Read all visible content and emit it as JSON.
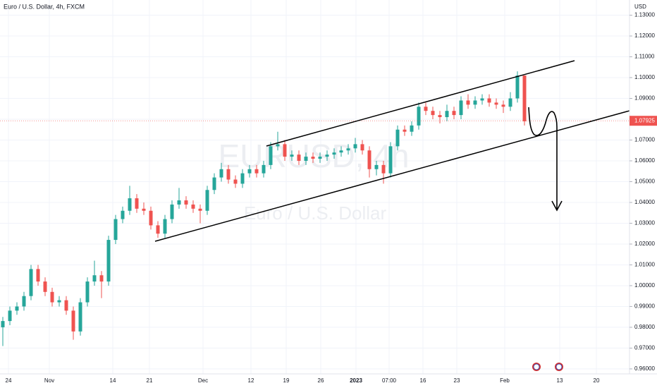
{
  "chart_data": {
    "type": "candlestick",
    "title": "Euro / U.S. Dollar, 4h, FXCM",
    "watermark": "EURUSD, 4h",
    "watermark_subtitle": "Euro / U.S. Dollar",
    "currency": "USD",
    "last_price": 1.07925,
    "up_color": "#26a69a",
    "down_color": "#ef5350",
    "grid": true,
    "ylim": [
      0.9576,
      1.1373
    ],
    "yticks": [
      {
        "value": 0.96,
        "label": "0.96000"
      },
      {
        "value": 0.97,
        "label": "0.97000"
      },
      {
        "value": 0.98,
        "label": "0.98000"
      },
      {
        "value": 0.99,
        "label": "0.99000"
      },
      {
        "value": 1.0,
        "label": "1.00000"
      },
      {
        "value": 1.01,
        "label": "1.01000"
      },
      {
        "value": 1.02,
        "label": "1.02000"
      },
      {
        "value": 1.03,
        "label": "1.03000"
      },
      {
        "value": 1.04,
        "label": "1.04000"
      },
      {
        "value": 1.05,
        "label": "1.05000"
      },
      {
        "value": 1.06,
        "label": "1.06000"
      },
      {
        "value": 1.07,
        "label": "1.07000"
      },
      {
        "value": 1.08,
        "label": "1.08000"
      },
      {
        "value": 1.09,
        "label": "1.09000"
      },
      {
        "value": 1.1,
        "label": "1.10000"
      },
      {
        "value": 1.11,
        "label": "1.11000"
      },
      {
        "value": 1.12,
        "label": "1.12000"
      },
      {
        "value": 1.13,
        "label": "1.13000"
      }
    ],
    "time_labels": [
      "24",
      "Nov",
      "14",
      "21",
      "Dec",
      "12",
      "19",
      "26",
      "2023",
      "07:00",
      "16",
      "23",
      "Feb",
      "13",
      "20"
    ],
    "open": [
      0.98,
      0.983,
      0.988,
      0.99,
      0.995,
      1.008,
      1.002,
      0.997,
      0.992,
      0.993,
      0.988,
      0.978,
      0.992,
      1.002,
      1.005,
      1.002,
      1.022,
      1.032,
      1.036,
      1.042,
      1.037,
      1.036,
      1.029,
      1.025,
      1.032,
      1.039,
      1.041,
      1.039,
      1.037,
      1.036,
      1.046,
      1.052,
      1.056,
      1.051,
      1.049,
      1.054,
      1.056,
      1.054,
      1.058,
      1.067,
      1.068,
      1.062,
      1.063,
      1.06,
      1.062,
      1.061,
      1.062,
      1.063,
      1.064,
      1.065,
      1.066,
      1.068,
      1.065,
      1.056,
      1.058,
      1.054,
      1.067,
      1.075,
      1.074,
      1.077,
      1.086,
      1.084,
      1.082,
      1.081,
      1.084,
      1.082,
      1.089,
      1.087,
      1.089,
      1.09,
      1.088,
      1.087,
      1.086,
      1.09,
      1.101
    ],
    "high": [
      0.985,
      0.99,
      0.992,
      0.997,
      1.01,
      1.01,
      1.004,
      0.999,
      0.995,
      0.995,
      0.99,
      0.994,
      1.004,
      1.012,
      1.007,
      1.024,
      1.034,
      1.038,
      1.048,
      1.044,
      1.04,
      1.038,
      1.031,
      1.034,
      1.041,
      1.047,
      1.043,
      1.041,
      1.039,
      1.048,
      1.054,
      1.059,
      1.058,
      1.053,
      1.056,
      1.058,
      1.058,
      1.06,
      1.069,
      1.074,
      1.07,
      1.065,
      1.065,
      1.064,
      1.064,
      1.064,
      1.065,
      1.066,
      1.067,
      1.068,
      1.071,
      1.07,
      1.067,
      1.06,
      1.06,
      1.069,
      1.077,
      1.077,
      1.079,
      1.088,
      1.088,
      1.086,
      1.084,
      1.087,
      1.086,
      1.091,
      1.092,
      1.091,
      1.092,
      1.092,
      1.09,
      1.089,
      1.093,
      1.103,
      1.101
    ],
    "low": [
      0.971,
      0.981,
      0.986,
      0.988,
      0.993,
      1.0,
      0.995,
      0.99,
      0.99,
      0.986,
      0.974,
      0.976,
      0.99,
      1.0,
      0.994,
      1.0,
      1.02,
      1.03,
      1.034,
      1.035,
      1.034,
      1.027,
      1.023,
      1.023,
      1.03,
      1.037,
      1.037,
      1.035,
      1.03,
      1.034,
      1.044,
      1.05,
      1.049,
      1.047,
      1.047,
      1.052,
      1.052,
      1.052,
      1.056,
      1.065,
      1.06,
      1.06,
      1.058,
      1.058,
      1.059,
      1.059,
      1.06,
      1.061,
      1.062,
      1.063,
      1.064,
      1.063,
      1.052,
      1.053,
      1.049,
      1.052,
      1.065,
      1.072,
      1.072,
      1.075,
      1.082,
      1.08,
      1.078,
      1.079,
      1.08,
      1.08,
      1.085,
      1.085,
      1.087,
      1.086,
      1.085,
      1.083,
      1.084,
      1.088,
      1.077
    ],
    "close": [
      0.983,
      0.988,
      0.99,
      0.995,
      1.008,
      1.002,
      0.997,
      0.992,
      0.993,
      0.988,
      0.978,
      0.992,
      1.002,
      1.005,
      1.002,
      1.022,
      1.032,
      1.036,
      1.042,
      1.037,
      1.036,
      1.029,
      1.025,
      1.032,
      1.039,
      1.041,
      1.039,
      1.037,
      1.036,
      1.046,
      1.052,
      1.056,
      1.051,
      1.049,
      1.054,
      1.056,
      1.054,
      1.058,
      1.067,
      1.068,
      1.062,
      1.063,
      1.06,
      1.062,
      1.061,
      1.062,
      1.063,
      1.064,
      1.065,
      1.066,
      1.068,
      1.065,
      1.056,
      1.058,
      1.054,
      1.067,
      1.075,
      1.074,
      1.077,
      1.086,
      1.084,
      1.082,
      1.081,
      1.084,
      1.082,
      1.089,
      1.087,
      1.089,
      1.09,
      1.088,
      1.087,
      1.086,
      1.09,
      1.101,
      1.079
    ]
  }
}
